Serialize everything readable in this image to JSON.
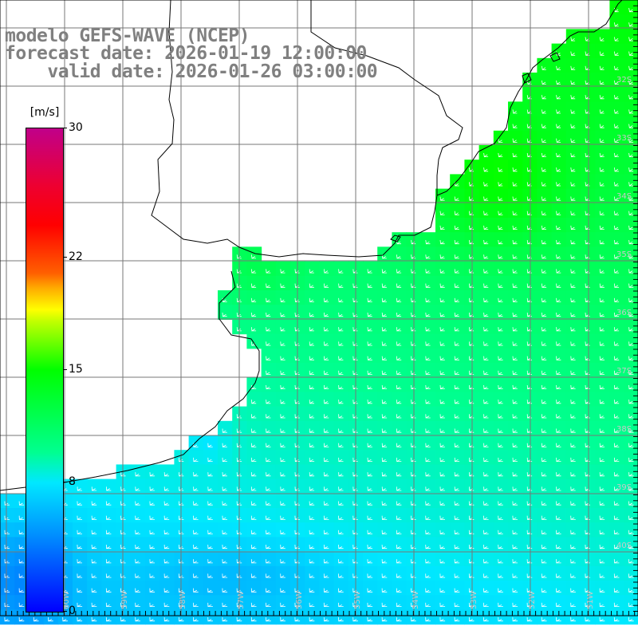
{
  "title": {
    "model": "modelo GEFS-WAVE (NCEP)",
    "forecast": "forecast date: 2026-01-19 12:00:00",
    "valid": "    valid date: 2026-01-26 03:00:00"
  },
  "colorbar": {
    "unit": "[m/s]",
    "min": 0,
    "max": 30,
    "ticks": [
      {
        "value": 30,
        "label": "30"
      },
      {
        "value": 22,
        "label": "22"
      },
      {
        "value": 15,
        "label": "15"
      },
      {
        "value": 8,
        "label": "8"
      },
      {
        "value": 0,
        "label": "0"
      }
    ]
  },
  "lat_labels": [
    "32S",
    "33S",
    "34S",
    "35S",
    "36S",
    "37S",
    "38S",
    "39S",
    "40S"
  ],
  "lon_labels": [
    "60W",
    "59W",
    "58W",
    "57W",
    "56W",
    "55W",
    "54W",
    "53W",
    "52W",
    "51W"
  ],
  "field": {
    "description_units": "m/s",
    "wind_direction": "from north-east, pointing south-west"
  }
}
